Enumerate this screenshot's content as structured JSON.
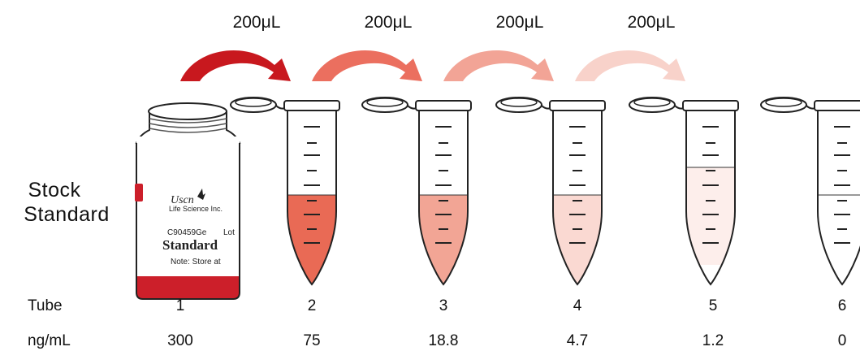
{
  "transfer_volumes": [
    "200μL",
    "200μL",
    "200μL",
    "200μL"
  ],
  "stock_label": {
    "line1": "Stock",
    "line2": "Standard"
  },
  "vial": {
    "brand": "Uscn",
    "brand_sub": "Life Science Inc.",
    "lot": "Lot",
    "code": "C90459Ge",
    "name": "Standard",
    "note": "Note: Store at"
  },
  "rows": {
    "tube_header": "Tube",
    "conc_header": "ng/mL",
    "tubes": [
      "1",
      "2",
      "3",
      "4",
      "5",
      "6"
    ],
    "concentrations": [
      "300",
      "75",
      "18.8",
      "4.7",
      "1.2",
      "0"
    ]
  },
  "colors": {
    "arrows": [
      "#c8181e",
      "#eb6f5f",
      "#f2a496",
      "#f8d2ca"
    ],
    "liquids": [
      "#e96a55",
      "#f2a595",
      "#fad9d2",
      "#fdeeeb",
      "#ffffff"
    ],
    "vial_red": "#cc1f2a"
  }
}
